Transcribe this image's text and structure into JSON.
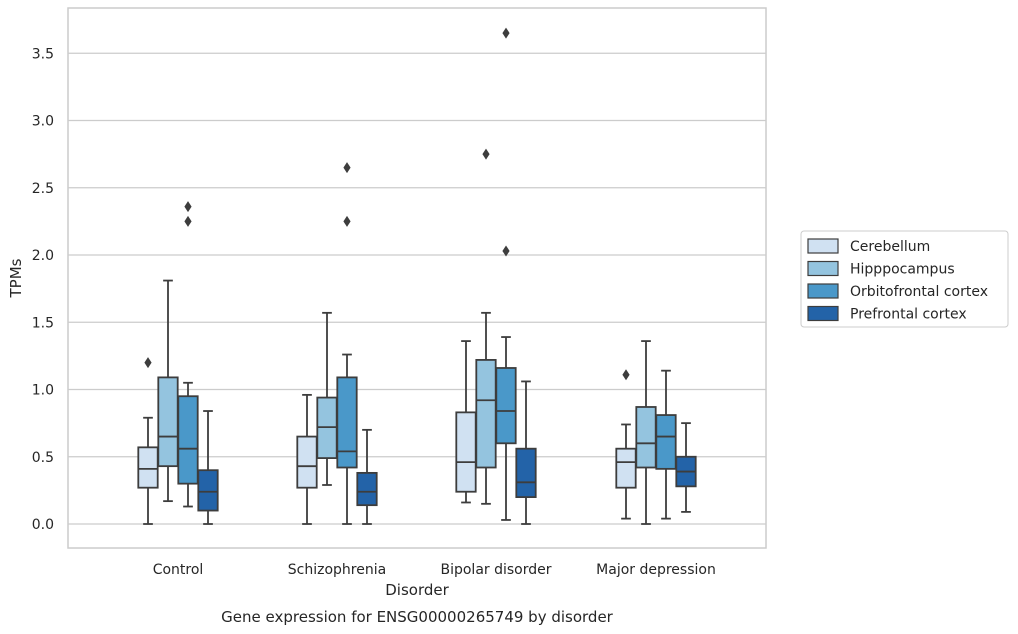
{
  "chart_data": {
    "type": "box",
    "caption": "Gene expression for ENSG00000265749 by disorder",
    "xlabel": "Disorder",
    "ylabel": "TPMs",
    "ylim": [
      -0.18,
      3.85
    ],
    "yticks": [
      "0.0",
      "0.5",
      "1.0",
      "1.5",
      "2.0",
      "2.5",
      "3.0",
      "3.5"
    ],
    "grid": "horizontal",
    "legend_position": "right",
    "categories": [
      "Control",
      "Schizophrenia",
      "Bipolar disorder",
      "Major depression"
    ],
    "series": [
      {
        "name": "Cerebellum",
        "color": "#d0e1f2",
        "boxes": [
          {
            "whisker_low": 0.0,
            "q1": 0.27,
            "median": 0.41,
            "q3": 0.57,
            "whisker_high": 0.79,
            "outliers": [
              1.2
            ]
          },
          {
            "whisker_low": 0.0,
            "q1": 0.27,
            "median": 0.43,
            "q3": 0.65,
            "whisker_high": 0.96,
            "outliers": []
          },
          {
            "whisker_low": 0.16,
            "q1": 0.24,
            "median": 0.46,
            "q3": 0.83,
            "whisker_high": 1.36,
            "outliers": []
          },
          {
            "whisker_low": 0.04,
            "q1": 0.27,
            "median": 0.46,
            "q3": 0.56,
            "whisker_high": 0.74,
            "outliers": [
              1.11
            ]
          }
        ]
      },
      {
        "name": "Hipppocampus",
        "color": "#94c4df",
        "boxes": [
          {
            "whisker_low": 0.17,
            "q1": 0.43,
            "median": 0.65,
            "q3": 1.09,
            "whisker_high": 1.81,
            "outliers": []
          },
          {
            "whisker_low": 0.29,
            "q1": 0.49,
            "median": 0.72,
            "q3": 0.94,
            "whisker_high": 1.57,
            "outliers": []
          },
          {
            "whisker_low": 0.15,
            "q1": 0.42,
            "median": 0.92,
            "q3": 1.22,
            "whisker_high": 1.57,
            "outliers": [
              2.75
            ]
          },
          {
            "whisker_low": 0.0,
            "q1": 0.42,
            "median": 0.6,
            "q3": 0.87,
            "whisker_high": 1.36,
            "outliers": []
          }
        ]
      },
      {
        "name": "Orbitofrontal cortex",
        "color": "#4a98c9",
        "boxes": [
          {
            "whisker_low": 0.13,
            "q1": 0.3,
            "median": 0.56,
            "q3": 0.95,
            "whisker_high": 1.05,
            "outliers": [
              2.25,
              2.36
            ]
          },
          {
            "whisker_low": 0.0,
            "q1": 0.42,
            "median": 0.54,
            "q3": 1.09,
            "whisker_high": 1.26,
            "outliers": [
              2.25,
              2.65
            ]
          },
          {
            "whisker_low": 0.03,
            "q1": 0.6,
            "median": 0.84,
            "q3": 1.16,
            "whisker_high": 1.39,
            "outliers": [
              2.03,
              3.65
            ]
          },
          {
            "whisker_low": 0.04,
            "q1": 0.41,
            "median": 0.65,
            "q3": 0.81,
            "whisker_high": 1.14,
            "outliers": []
          }
        ]
      },
      {
        "name": "Prefrontal cortex",
        "color": "#2363a8",
        "boxes": [
          {
            "whisker_low": 0.0,
            "q1": 0.1,
            "median": 0.24,
            "q3": 0.4,
            "whisker_high": 0.84,
            "outliers": []
          },
          {
            "whisker_low": 0.0,
            "q1": 0.14,
            "median": 0.24,
            "q3": 0.38,
            "whisker_high": 0.7,
            "outliers": []
          },
          {
            "whisker_low": 0.0,
            "q1": 0.2,
            "median": 0.31,
            "q3": 0.56,
            "whisker_high": 1.06,
            "outliers": []
          },
          {
            "whisker_low": 0.09,
            "q1": 0.28,
            "median": 0.39,
            "q3": 0.5,
            "whisker_high": 0.75,
            "outliers": []
          }
        ]
      }
    ]
  }
}
